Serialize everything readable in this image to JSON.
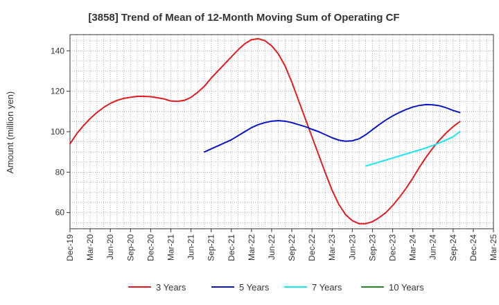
{
  "chart_data": {
    "type": "line",
    "title": "[3858]  Trend of Mean of 12-Month Moving Sum of Operating CF",
    "xlabel": "",
    "ylabel": "Amount (million yen)",
    "ylim": [
      52,
      148
    ],
    "yticks": [
      60,
      80,
      100,
      120,
      140
    ],
    "x_categories": [
      "Dec-19",
      "Mar-20",
      "Jun-20",
      "Sep-20",
      "Dec-20",
      "Mar-21",
      "Jun-21",
      "Sep-21",
      "Dec-21",
      "Mar-22",
      "Jun-22",
      "Sep-22",
      "Dec-22",
      "Mar-23",
      "Jun-23",
      "Sep-23",
      "Dec-23",
      "Mar-24",
      "Jun-24",
      "Sep-24",
      "Dec-24",
      "Mar-25"
    ],
    "grid": true,
    "legend_position": "bottom",
    "series": [
      {
        "name": "3 Years",
        "color": "#e31a1c",
        "points": [
          {
            "x": 0,
            "y": 94
          },
          {
            "x": 0.333,
            "y": 99
          },
          {
            "x": 0.667,
            "y": 103
          },
          {
            "x": 1,
            "y": 106.5
          },
          {
            "x": 1.333,
            "y": 109.5
          },
          {
            "x": 1.667,
            "y": 112
          },
          {
            "x": 2,
            "y": 114
          },
          {
            "x": 2.333,
            "y": 115.5
          },
          {
            "x": 2.667,
            "y": 116.5
          },
          {
            "x": 3,
            "y": 117
          },
          {
            "x": 3.333,
            "y": 117.5
          },
          {
            "x": 3.667,
            "y": 117.5
          },
          {
            "x": 4,
            "y": 117.3
          },
          {
            "x": 4.333,
            "y": 116.8
          },
          {
            "x": 4.667,
            "y": 116.2
          },
          {
            "x": 5,
            "y": 115.2
          },
          {
            "x": 5.333,
            "y": 115
          },
          {
            "x": 5.667,
            "y": 115.5
          },
          {
            "x": 6,
            "y": 117
          },
          {
            "x": 6.333,
            "y": 119.5
          },
          {
            "x": 6.667,
            "y": 122.5
          },
          {
            "x": 7,
            "y": 126.5
          },
          {
            "x": 7.333,
            "y": 130
          },
          {
            "x": 7.667,
            "y": 133.5
          },
          {
            "x": 8,
            "y": 137
          },
          {
            "x": 8.333,
            "y": 140.5
          },
          {
            "x": 8.667,
            "y": 143.5
          },
          {
            "x": 9,
            "y": 145.5
          },
          {
            "x": 9.333,
            "y": 146
          },
          {
            "x": 9.667,
            "y": 145
          },
          {
            "x": 10,
            "y": 142.5
          },
          {
            "x": 10.333,
            "y": 138.5
          },
          {
            "x": 10.667,
            "y": 132.5
          },
          {
            "x": 11,
            "y": 124.5
          },
          {
            "x": 11.333,
            "y": 115.5
          },
          {
            "x": 11.667,
            "y": 106.5
          },
          {
            "x": 12,
            "y": 97.5
          },
          {
            "x": 12.333,
            "y": 88.5
          },
          {
            "x": 12.667,
            "y": 79.5
          },
          {
            "x": 13,
            "y": 71
          },
          {
            "x": 13.333,
            "y": 64
          },
          {
            "x": 13.667,
            "y": 59
          },
          {
            "x": 14,
            "y": 56
          },
          {
            "x": 14.333,
            "y": 54.5
          },
          {
            "x": 14.667,
            "y": 54.5
          },
          {
            "x": 15,
            "y": 55.5
          },
          {
            "x": 15.333,
            "y": 57.5
          },
          {
            "x": 15.667,
            "y": 60
          },
          {
            "x": 16,
            "y": 63.5
          },
          {
            "x": 16.333,
            "y": 67.5
          },
          {
            "x": 16.667,
            "y": 72
          },
          {
            "x": 17,
            "y": 77
          },
          {
            "x": 17.333,
            "y": 82.5
          },
          {
            "x": 17.667,
            "y": 87.5
          },
          {
            "x": 18,
            "y": 92
          },
          {
            "x": 18.333,
            "y": 96
          },
          {
            "x": 18.667,
            "y": 99.5
          },
          {
            "x": 19,
            "y": 102.5
          },
          {
            "x": 19.333,
            "y": 105
          }
        ]
      },
      {
        "name": "5 Years",
        "color": "#0a14c8",
        "points": [
          {
            "x": 6.667,
            "y": 90
          },
          {
            "x": 7,
            "y": 91.5
          },
          {
            "x": 7.333,
            "y": 93
          },
          {
            "x": 7.667,
            "y": 94.5
          },
          {
            "x": 8,
            "y": 96
          },
          {
            "x": 8.333,
            "y": 98
          },
          {
            "x": 8.667,
            "y": 100
          },
          {
            "x": 9,
            "y": 102
          },
          {
            "x": 9.333,
            "y": 103.5
          },
          {
            "x": 9.667,
            "y": 104.5
          },
          {
            "x": 10,
            "y": 105.2
          },
          {
            "x": 10.333,
            "y": 105.5
          },
          {
            "x": 10.667,
            "y": 105.2
          },
          {
            "x": 11,
            "y": 104.5
          },
          {
            "x": 11.333,
            "y": 103.5
          },
          {
            "x": 11.667,
            "y": 102.5
          },
          {
            "x": 12,
            "y": 101.2
          },
          {
            "x": 12.333,
            "y": 100
          },
          {
            "x": 12.667,
            "y": 98.5
          },
          {
            "x": 13,
            "y": 97
          },
          {
            "x": 13.333,
            "y": 95.8
          },
          {
            "x": 13.667,
            "y": 95.3
          },
          {
            "x": 14,
            "y": 95.5
          },
          {
            "x": 14.333,
            "y": 96.5
          },
          {
            "x": 14.667,
            "y": 98.5
          },
          {
            "x": 15,
            "y": 101
          },
          {
            "x": 15.333,
            "y": 103.5
          },
          {
            "x": 15.667,
            "y": 105.8
          },
          {
            "x": 16,
            "y": 107.8
          },
          {
            "x": 16.333,
            "y": 109.5
          },
          {
            "x": 16.667,
            "y": 111
          },
          {
            "x": 17,
            "y": 112.2
          },
          {
            "x": 17.333,
            "y": 113
          },
          {
            "x": 17.667,
            "y": 113.4
          },
          {
            "x": 18,
            "y": 113.3
          },
          {
            "x": 18.333,
            "y": 112.8
          },
          {
            "x": 18.667,
            "y": 111.8
          },
          {
            "x": 19,
            "y": 110.5
          },
          {
            "x": 19.333,
            "y": 109.5
          }
        ]
      },
      {
        "name": "7 Years",
        "color": "#19e6f0",
        "points": [
          {
            "x": 14.667,
            "y": 83
          },
          {
            "x": 15,
            "y": 84
          },
          {
            "x": 15.333,
            "y": 85
          },
          {
            "x": 15.667,
            "y": 86
          },
          {
            "x": 16,
            "y": 87
          },
          {
            "x": 16.333,
            "y": 88
          },
          {
            "x": 16.667,
            "y": 89
          },
          {
            "x": 17,
            "y": 90
          },
          {
            "x": 17.333,
            "y": 91
          },
          {
            "x": 17.667,
            "y": 92
          },
          {
            "x": 18,
            "y": 93.2
          },
          {
            "x": 18.333,
            "y": 94.5
          },
          {
            "x": 18.667,
            "y": 96
          },
          {
            "x": 19,
            "y": 97.5
          },
          {
            "x": 19.333,
            "y": 100
          }
        ]
      },
      {
        "name": "10 Years",
        "color": "#228b22",
        "points": []
      }
    ]
  }
}
